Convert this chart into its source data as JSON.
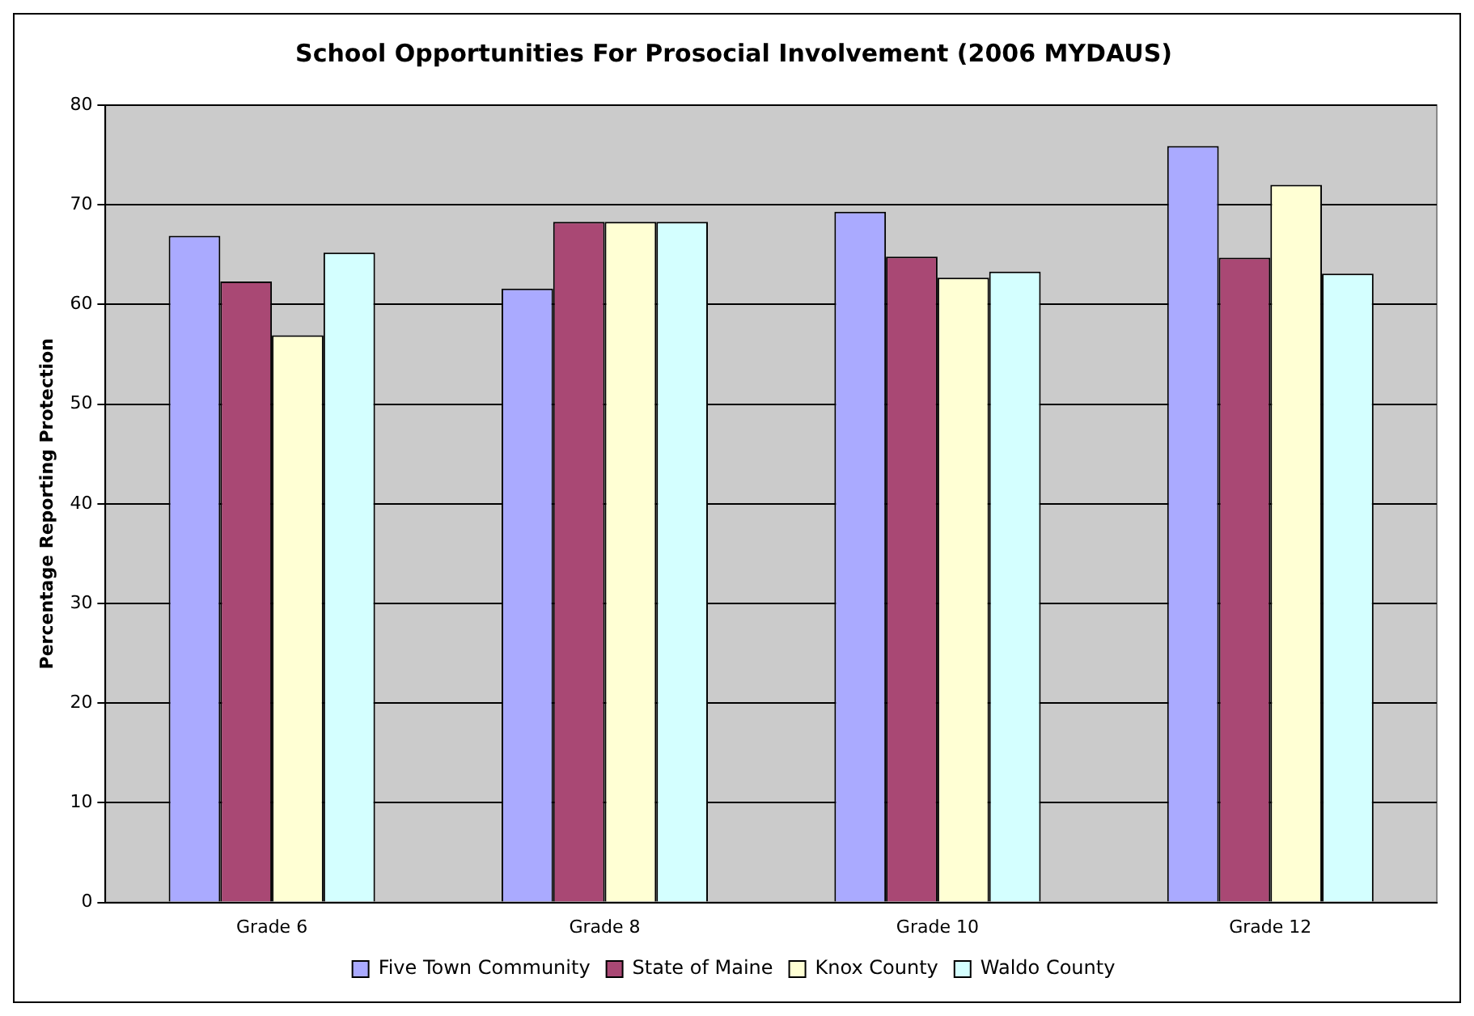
{
  "chart_data": {
    "type": "bar",
    "title": "School Opportunities For Prosocial Involvement (2006 MYDAUS)",
    "ylabel": "Percentage Reporting Protection",
    "categories": [
      "Grade 6",
      "Grade 8",
      "Grade 10",
      "Grade 12"
    ],
    "series": [
      {
        "name": "Five Town Community",
        "color": "#aaaaff",
        "values": [
          66.9,
          61.6,
          69.3,
          75.9
        ]
      },
      {
        "name": "State of Maine",
        "color": "#a94874",
        "values": [
          62.3,
          68.3,
          64.8,
          64.7
        ]
      },
      {
        "name": "Knox County",
        "color": "#ffffd4",
        "values": [
          56.9,
          68.3,
          62.7,
          72.0
        ]
      },
      {
        "name": "Waldo County",
        "color": "#d4ffff",
        "values": [
          65.2,
          68.3,
          63.3,
          63.1
        ]
      }
    ],
    "ylim": [
      0,
      80
    ],
    "yticks": [
      0,
      10,
      20,
      30,
      40,
      50,
      60,
      70,
      80
    ],
    "grid": "y",
    "legend": "bottom"
  }
}
